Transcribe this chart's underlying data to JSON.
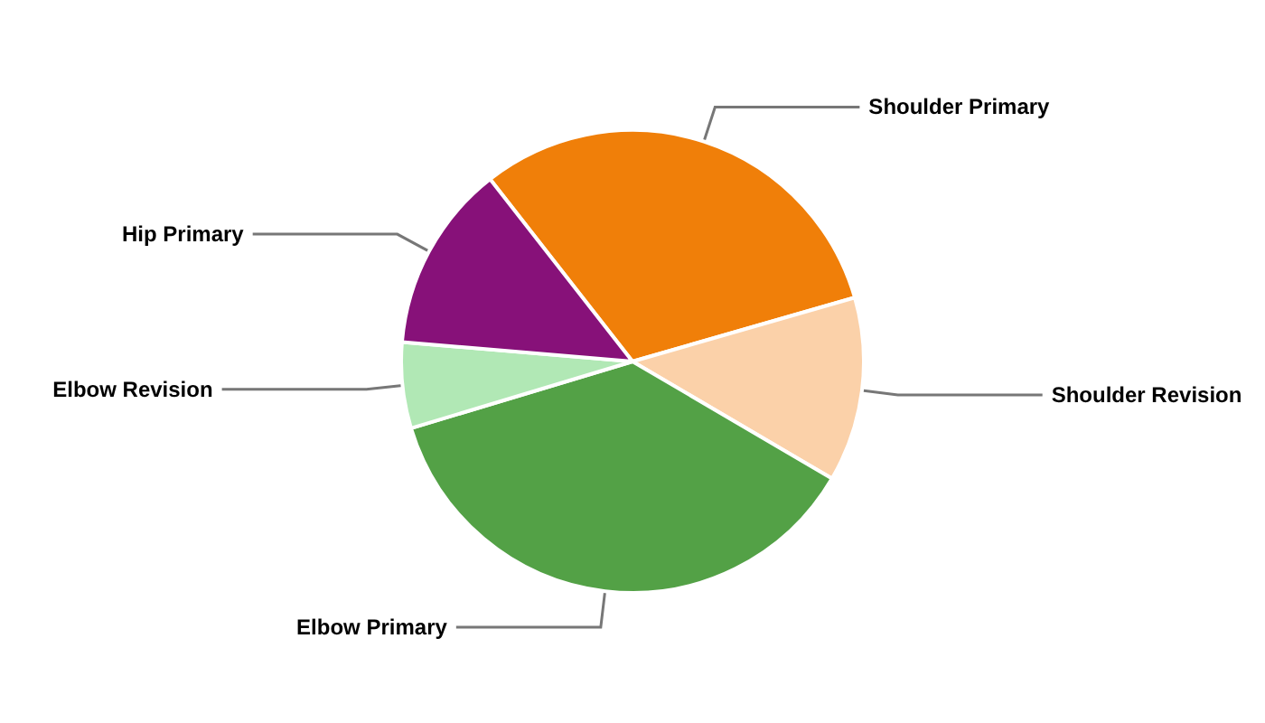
{
  "chart_data": {
    "type": "pie",
    "categories": [
      "Shoulder Primary",
      "Shoulder Revision",
      "Elbow Primary",
      "Elbow Revision",
      "Hip Primary"
    ],
    "values": [
      31.1,
      12.9,
      36.9,
      6.0,
      13.1
    ],
    "colors": [
      "#f07f09",
      "#fbd1a9",
      "#53a146",
      "#b1e8b5",
      "#871179"
    ],
    "legend": false
  }
}
